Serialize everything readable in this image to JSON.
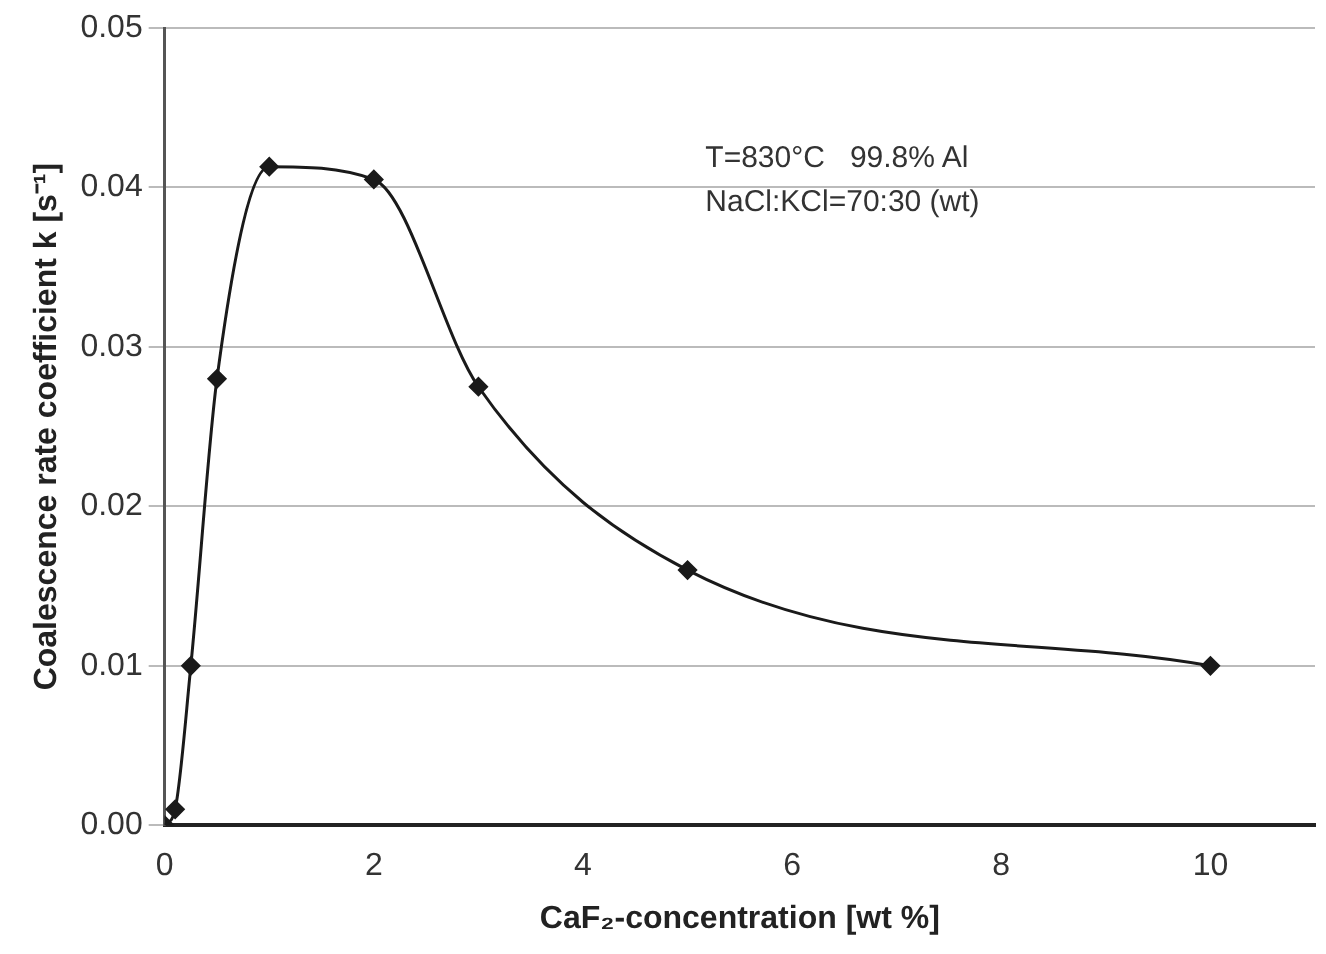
{
  "chart_data": {
    "type": "line",
    "xlabel": "CaF₂-concentration [wt %]",
    "ylabel": "Coalescence rate coefficient k [s⁻¹]",
    "x": [
      0,
      0.1,
      0.25,
      0.5,
      1,
      2,
      3,
      5,
      10
    ],
    "series": [
      {
        "color": "#1a1a1a",
        "values": [
          0,
          0.001,
          0.01,
          0.028,
          0.0413,
          0.0405,
          0.0275,
          0.016,
          0.01
        ]
      }
    ],
    "xlim": [
      0,
      11
    ],
    "xticks": [
      0,
      2,
      4,
      6,
      8,
      10
    ],
    "ylim": [
      0,
      0.05
    ],
    "yticks": [
      {
        "value": 0,
        "label": "0.00"
      },
      {
        "value": 0.01,
        "label": "0.01"
      },
      {
        "value": 0.02,
        "label": "0.02"
      },
      {
        "value": 0.03,
        "label": "0.03"
      },
      {
        "value": 0.04,
        "label": "0.04"
      },
      {
        "value": 0.05,
        "label": "0.05"
      }
    ],
    "grid": "y",
    "marker": "diamond",
    "line_style": "solid",
    "legend": false,
    "annotations": [
      "T=830°C   99.8% Al",
      "NaCl:KCl=70:30 (wt)"
    ]
  }
}
